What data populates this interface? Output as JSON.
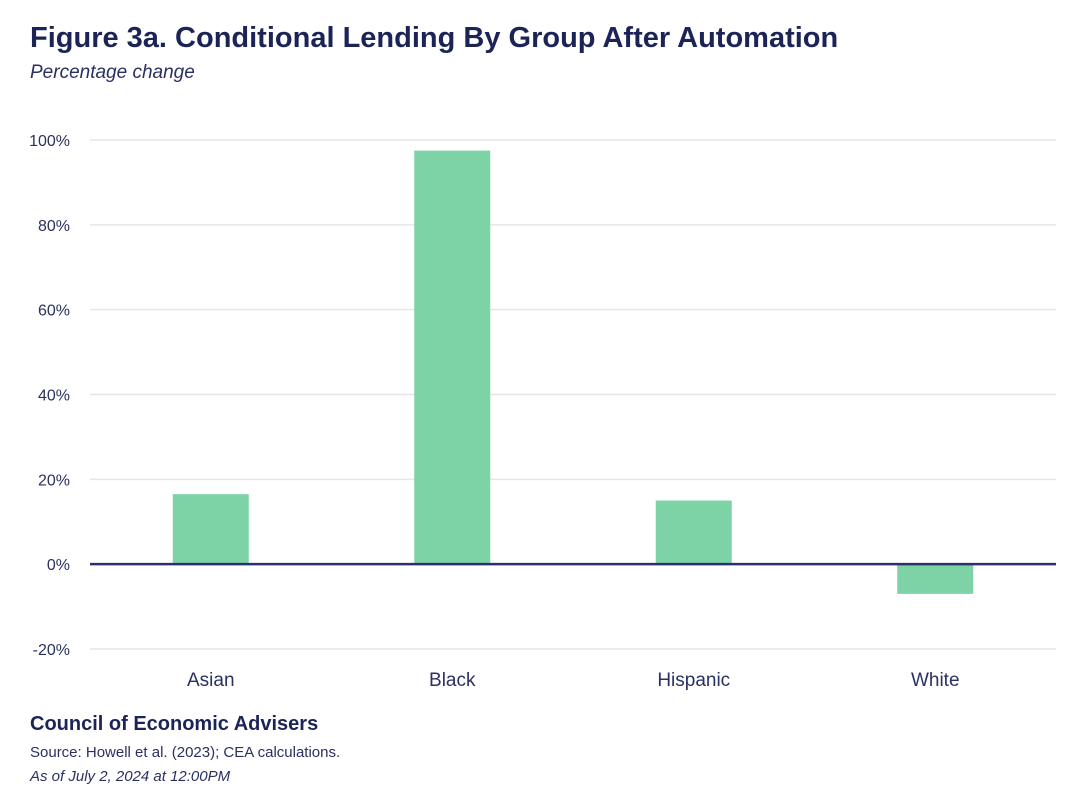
{
  "chart_data": {
    "type": "bar",
    "title": "Figure 3a. Conditional Lending By Group After Automation",
    "subtitle": "Percentage change",
    "categories": [
      "Asian",
      "Black",
      "Hispanic",
      "White"
    ],
    "values": [
      16.5,
      97.5,
      15,
      -7
    ],
    "ylim": [
      -20,
      100
    ],
    "yticks": [
      -20,
      0,
      20,
      40,
      60,
      80,
      100
    ],
    "ytick_labels": [
      "-20%",
      "0%",
      "20%",
      "40%",
      "60%",
      "80%",
      "100%"
    ],
    "xlabel": "",
    "ylabel": "",
    "grid": true,
    "bar_color": "#7dd3a6",
    "zero_line_color": "#2b2f6b",
    "grid_color": "#e4e6ec"
  },
  "footer": {
    "organization": "Council of Economic Advisers",
    "source": "Source: Howell et al. (2023); CEA calculations.",
    "as_of": "As of July 2, 2024 at 12:00PM"
  }
}
